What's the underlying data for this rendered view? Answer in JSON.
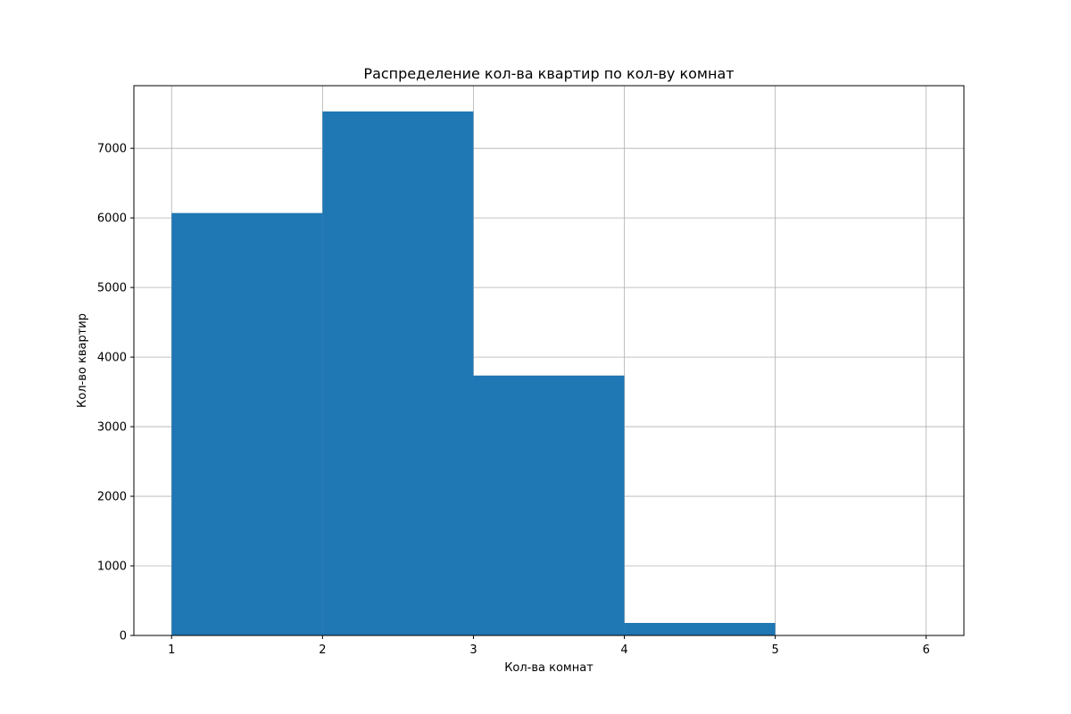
{
  "chart_data": {
    "type": "bar",
    "title": "Распределение кол-ва квартир по кол-ву комнат",
    "xlabel": "Кол-ва комнат",
    "ylabel": "Кол-во квартир",
    "bins": [
      {
        "start": 1,
        "end": 2,
        "value": 6070
      },
      {
        "start": 2,
        "end": 3,
        "value": 7530
      },
      {
        "start": 3,
        "end": 4,
        "value": 3735
      },
      {
        "start": 4,
        "end": 5,
        "value": 180
      },
      {
        "start": 5,
        "end": 6,
        "value": 0
      }
    ],
    "xlim": [
      0.75,
      6.25
    ],
    "ylim": [
      0,
      7900
    ],
    "xticks": [
      1,
      2,
      3,
      4,
      5,
      6
    ],
    "yticks": [
      0,
      1000,
      2000,
      3000,
      4000,
      5000,
      6000,
      7000
    ],
    "grid": true,
    "bar_color": "#1f77b4"
  }
}
